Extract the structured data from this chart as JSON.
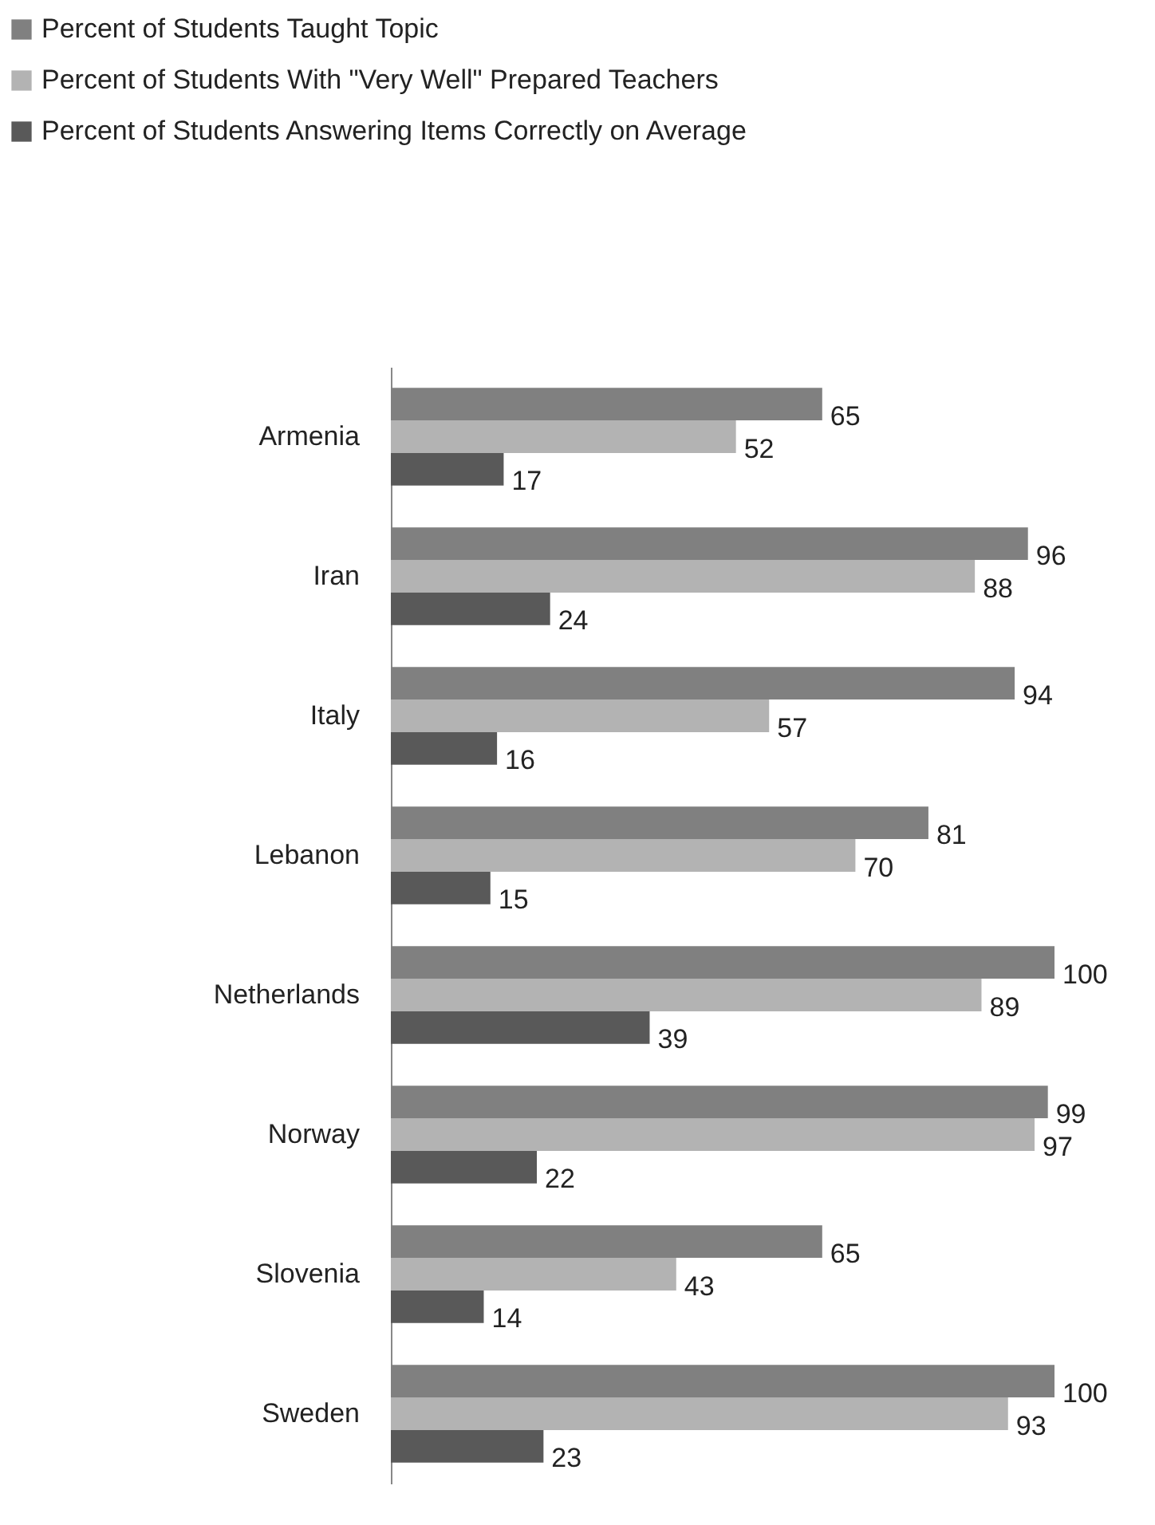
{
  "chart_data": {
    "type": "bar",
    "orientation": "horizontal",
    "categories": [
      "Armenia",
      "Iran",
      "Italy",
      "Lebanon",
      "Netherlands",
      "Norway",
      "Slovenia",
      "Sweden"
    ],
    "series": [
      {
        "name": "Percent of Students Taught Topic",
        "color": "#808080",
        "values": [
          65,
          96,
          94,
          81,
          100,
          99,
          65,
          100
        ]
      },
      {
        "name": "Percent of Students With \"Very Well\" Prepared Teachers",
        "color": "#b3b3b3",
        "values": [
          52,
          88,
          57,
          70,
          89,
          97,
          43,
          93
        ]
      },
      {
        "name": "Percent of Students Answering Items Correctly on Average",
        "color": "#595959",
        "values": [
          17,
          24,
          16,
          15,
          39,
          22,
          14,
          23
        ]
      }
    ],
    "data_labels": true,
    "legend": "top",
    "grid": false
  }
}
